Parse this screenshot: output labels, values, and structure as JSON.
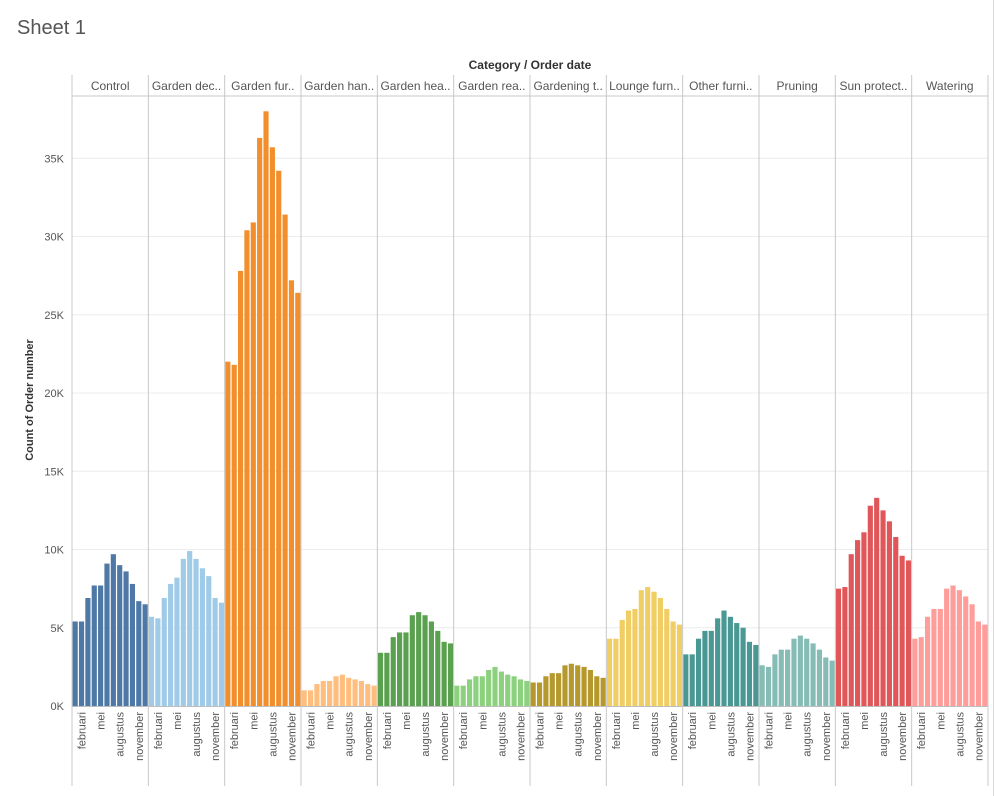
{
  "sheet": {
    "title": "Sheet 1"
  },
  "chart_data": {
    "type": "bar",
    "title": "Category / Order date",
    "ylabel": "Count of Order number",
    "ylim": [
      0,
      40000
    ],
    "yticks": [
      0,
      5000,
      10000,
      15000,
      20000,
      25000,
      30000,
      35000
    ],
    "ytick_labels": [
      "0K",
      "5K",
      "10K",
      "15K",
      "20K",
      "25K",
      "30K",
      "35K"
    ],
    "months": [
      "januari",
      "februari",
      "maart",
      "april",
      "mei",
      "juni",
      "juli",
      "augustus",
      "september",
      "oktober",
      "november",
      "december"
    ],
    "month_tick_labels": [
      "februari",
      "mei",
      "augustus",
      "november"
    ],
    "grid": true,
    "legend": "none",
    "panels": [
      {
        "category": "Control",
        "color": "#4e79a7",
        "values": [
          5400,
          5400,
          6900,
          7700,
          7700,
          9100,
          9700,
          9000,
          8600,
          7800,
          6700,
          6500
        ]
      },
      {
        "category": "Garden dec..",
        "color": "#a0cbe8",
        "values": [
          5700,
          5600,
          6900,
          7800,
          8200,
          9400,
          9900,
          9400,
          8800,
          8300,
          6900,
          6600
        ]
      },
      {
        "category": "Garden fur..",
        "color": "#f28e2b",
        "values": [
          22000,
          21800,
          27800,
          30400,
          30900,
          36300,
          38000,
          35700,
          34200,
          31400,
          27200,
          26400
        ]
      },
      {
        "category": "Garden han..",
        "color": "#ffbe7d",
        "values": [
          1000,
          1000,
          1400,
          1600,
          1600,
          1900,
          2000,
          1800,
          1700,
          1600,
          1400,
          1300
        ]
      },
      {
        "category": "Garden hea..",
        "color": "#59a14f",
        "values": [
          3400,
          3400,
          4400,
          4700,
          4700,
          5800,
          6000,
          5800,
          5400,
          4800,
          4100,
          4000
        ]
      },
      {
        "category": "Garden rea..",
        "color": "#8cd17d",
        "values": [
          1300,
          1300,
          1700,
          1900,
          1900,
          2300,
          2500,
          2200,
          2000,
          1900,
          1700,
          1600
        ]
      },
      {
        "category": "Gardening t..",
        "color": "#b6992d",
        "values": [
          1500,
          1500,
          1900,
          2100,
          2100,
          2600,
          2700,
          2600,
          2500,
          2300,
          1900,
          1800
        ]
      },
      {
        "category": "Lounge furn..",
        "color": "#f1ce63",
        "values": [
          4300,
          4300,
          5500,
          6100,
          6200,
          7400,
          7600,
          7300,
          6900,
          6200,
          5400,
          5200
        ]
      },
      {
        "category": "Other furni..",
        "color": "#499894",
        "values": [
          3300,
          3300,
          4300,
          4800,
          4800,
          5600,
          6100,
          5700,
          5300,
          5000,
          4100,
          3900
        ]
      },
      {
        "category": "Pruning",
        "color": "#86bcb6",
        "values": [
          2600,
          2500,
          3300,
          3600,
          3600,
          4300,
          4500,
          4300,
          4000,
          3600,
          3100,
          2900
        ]
      },
      {
        "category": "Sun protect..",
        "color": "#e15759",
        "values": [
          7500,
          7600,
          9700,
          10600,
          11100,
          12800,
          13300,
          12500,
          11800,
          10800,
          9600,
          9300
        ]
      },
      {
        "category": "Watering",
        "color": "#ff9d9a",
        "values": [
          4300,
          4400,
          5700,
          6200,
          6200,
          7500,
          7700,
          7400,
          7000,
          6500,
          5400,
          5200
        ]
      }
    ]
  }
}
